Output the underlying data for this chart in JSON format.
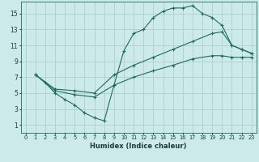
{
  "xlabel": "Humidex (Indice chaleur)",
  "bg_color": "#cceaea",
  "grid_color": "#b0cecc",
  "line_color": "#1e6b5e",
  "xlim": [
    -0.5,
    23.5
  ],
  "ylim": [
    0,
    16.5
  ],
  "xticks": [
    0,
    1,
    2,
    3,
    4,
    5,
    6,
    7,
    8,
    9,
    10,
    11,
    12,
    13,
    14,
    15,
    16,
    17,
    18,
    19,
    20,
    21,
    22,
    23
  ],
  "yticks": [
    1,
    3,
    5,
    7,
    9,
    11,
    13,
    15
  ],
  "line1_x": [
    1,
    2,
    3,
    4,
    5,
    6,
    7,
    8,
    9,
    10,
    11,
    12,
    13,
    14,
    15,
    16,
    17,
    18,
    19,
    20,
    21,
    22,
    23
  ],
  "line1_y": [
    7.3,
    6.3,
    5.0,
    4.2,
    3.5,
    2.5,
    1.9,
    1.5,
    6.0,
    10.3,
    12.5,
    13.0,
    14.5,
    15.3,
    15.7,
    15.7,
    16.0,
    15.0,
    14.5,
    13.5,
    11.0,
    10.5,
    10.0
  ],
  "line2_x": [
    1,
    3,
    5,
    7,
    9,
    11,
    13,
    15,
    17,
    19,
    20,
    21,
    22,
    23
  ],
  "line2_y": [
    7.3,
    5.5,
    5.3,
    5.0,
    7.3,
    8.5,
    9.5,
    10.5,
    11.5,
    12.5,
    12.7,
    11.0,
    10.5,
    10.0
  ],
  "line3_x": [
    1,
    3,
    5,
    7,
    9,
    11,
    13,
    15,
    17,
    19,
    20,
    21,
    22,
    23
  ],
  "line3_y": [
    7.3,
    5.3,
    4.8,
    4.5,
    6.0,
    7.0,
    7.8,
    8.5,
    9.3,
    9.7,
    9.7,
    9.5,
    9.5,
    9.5
  ]
}
